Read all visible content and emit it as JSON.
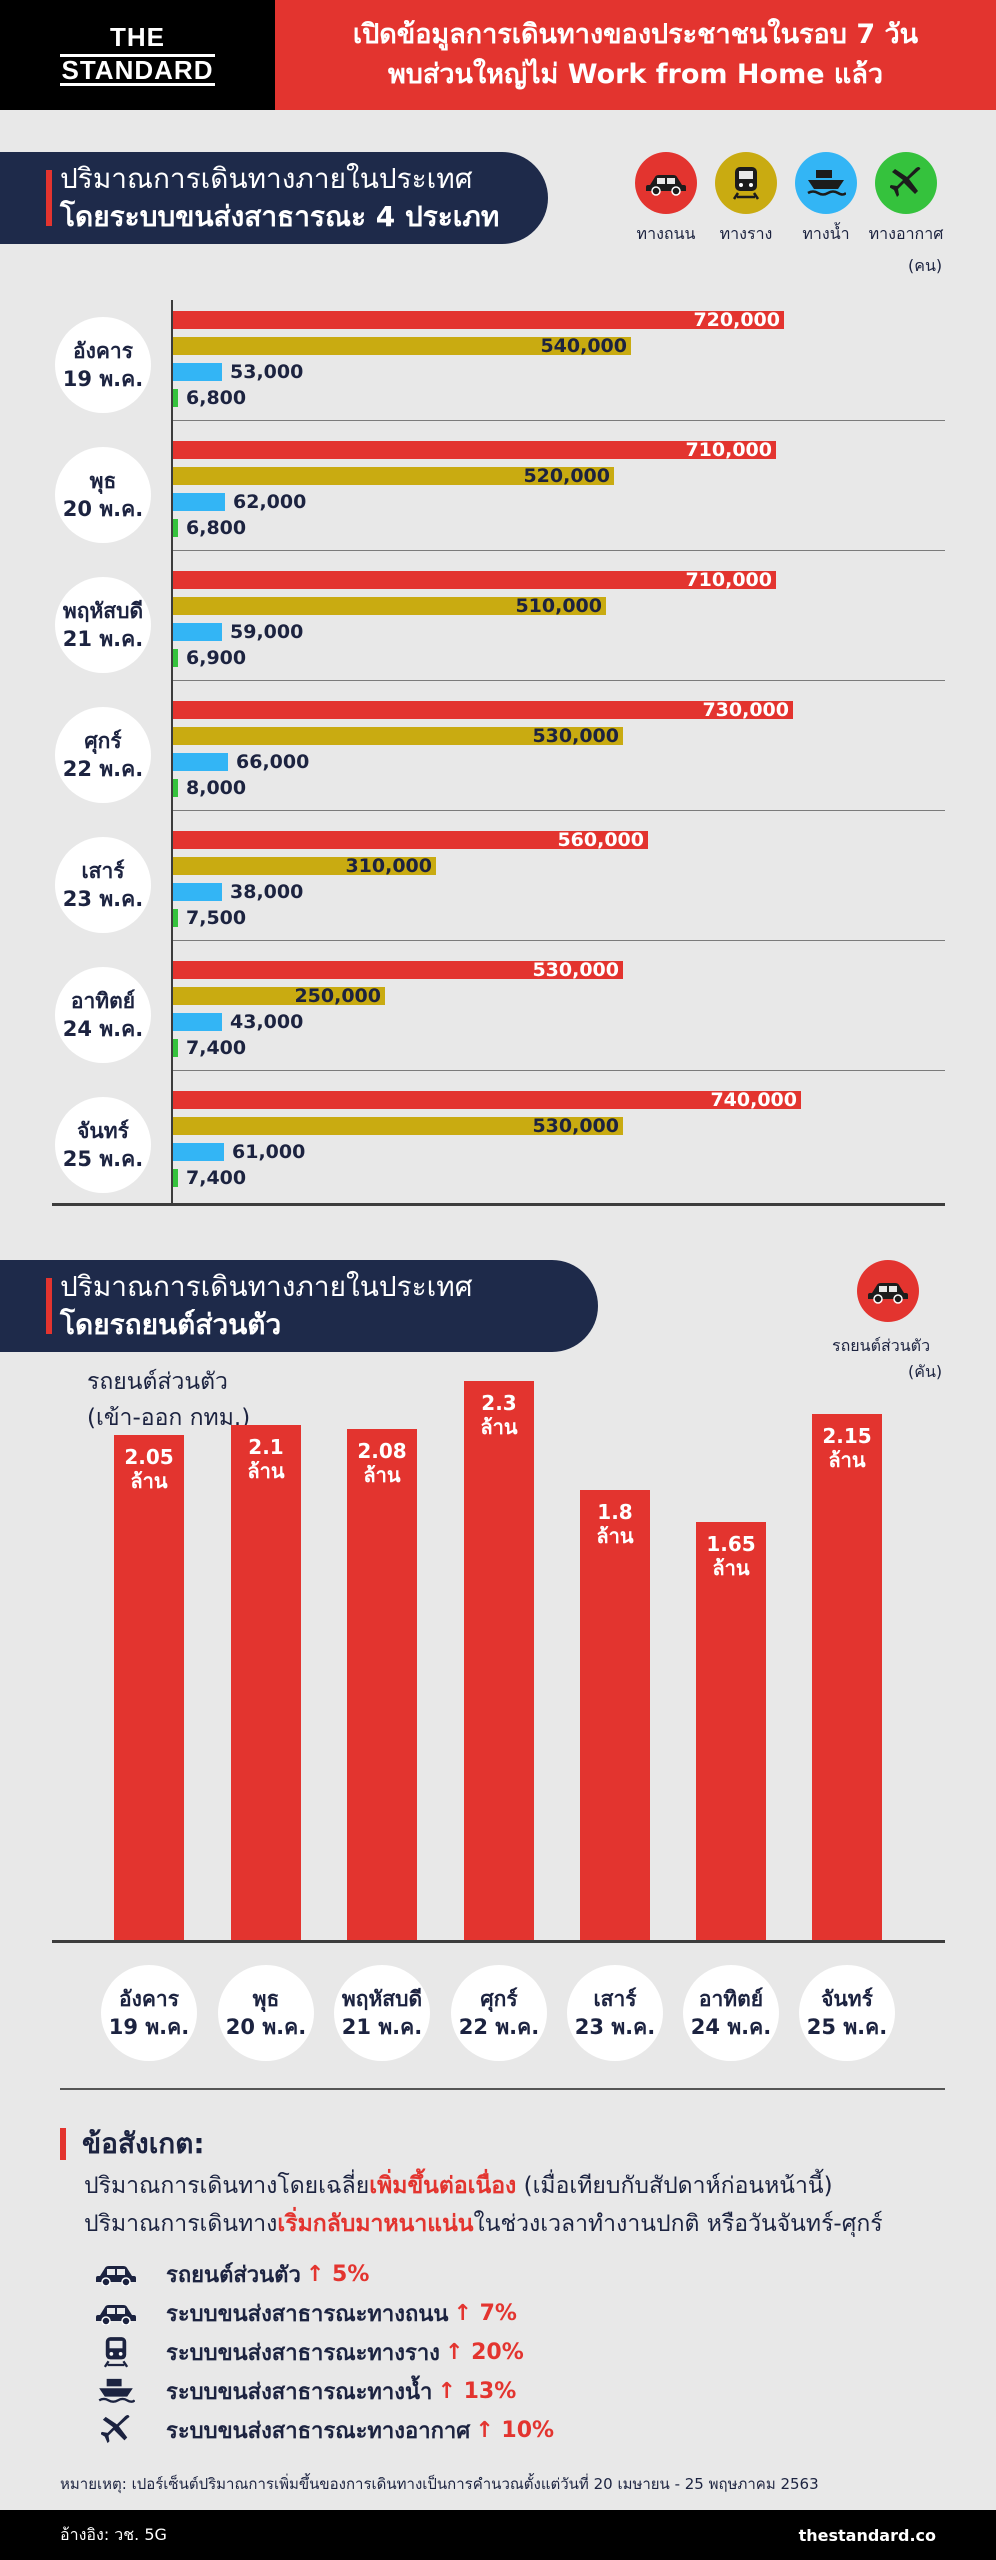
{
  "header": {
    "logo_line1": "THE",
    "logo_line2": "STANDARD",
    "headline_1": "เปิดข้อมูลการเดินทางของประชาชนในรอบ 7 วัน",
    "headline_2": "พบส่วนใหญ่ไม่ Work from Home แล้ว"
  },
  "section1": {
    "title_1": "ปริมาณการเดินทางภายในประเทศ",
    "title_2": "โดยระบบขนส่งสาธารณะ 4 ประเภท",
    "unit": "(คน)"
  },
  "legend": [
    {
      "label": "ทางถนน",
      "color": "#e3342f",
      "icon": "car-icon"
    },
    {
      "label": "ทางราง",
      "color": "#c9ab11",
      "icon": "train-icon"
    },
    {
      "label": "ทางน้ำ",
      "color": "#33b5f5",
      "icon": "boat-icon"
    },
    {
      "label": "ทางอากาศ",
      "color": "#35c23d",
      "icon": "plane-icon"
    }
  ],
  "section2": {
    "title_1": "ปริมาณการเดินทางภายในประเทศ",
    "title_2": "โดยรถยนต์ส่วนตัว",
    "legend_label": "รถยนต์ส่วนตัว",
    "unit": "(คัน)",
    "ylabel_1": "รถยนต์ส่วนตัว",
    "ylabel_2": "(เข้า-ออก กทม.)"
  },
  "chart_data": [
    {
      "type": "bar",
      "orientation": "horizontal",
      "title": "ปริมาณการเดินทางภายในประเทศ โดยระบบขนส่งสาธารณะ 4 ประเภท",
      "unit": "(คน)",
      "categories": [
        {
          "day": "อังคาร",
          "date": "19 พ.ค."
        },
        {
          "day": "พุธ",
          "date": "20 พ.ค."
        },
        {
          "day": "พฤหัสบดี",
          "date": "21 พ.ค."
        },
        {
          "day": "ศุกร์",
          "date": "22 พ.ค."
        },
        {
          "day": "เสาร์",
          "date": "23 พ.ค."
        },
        {
          "day": "อาทิตย์",
          "date": "24 พ.ค."
        },
        {
          "day": "จันทร์",
          "date": "25 พ.ค."
        }
      ],
      "series": [
        {
          "name": "ทางถนน",
          "color": "#e3342f",
          "values": [
            720000,
            710000,
            710000,
            730000,
            560000,
            530000,
            740000
          ],
          "labels": [
            "720,000",
            "710,000",
            "710,000",
            "730,000",
            "560,000",
            "530,000",
            "740,000"
          ]
        },
        {
          "name": "ทางราง",
          "color": "#c9ab11",
          "values": [
            540000,
            520000,
            510000,
            530000,
            310000,
            250000,
            530000
          ],
          "labels": [
            "540,000",
            "520,000",
            "510,000",
            "530,000",
            "310,000",
            "250,000",
            "530,000"
          ]
        },
        {
          "name": "ทางน้ำ",
          "color": "#33b5f5",
          "values": [
            53000,
            62000,
            59000,
            66000,
            38000,
            43000,
            61000
          ],
          "labels": [
            "53,000",
            "62,000",
            "59,000",
            "66,000",
            "38,000",
            "43,000",
            "61,000"
          ]
        },
        {
          "name": "ทางอากาศ",
          "color": "#35c23d",
          "values": [
            6800,
            6800,
            6900,
            8000,
            7500,
            7400,
            7400
          ],
          "labels": [
            "6,800",
            "6,800",
            "6,900",
            "8,000",
            "7,500",
            "7,400",
            "7,400"
          ]
        }
      ],
      "grid": false
    },
    {
      "type": "bar",
      "orientation": "vertical",
      "title": "ปริมาณการเดินทางภายในประเทศ โดยรถยนต์ส่วนตัว",
      "ylabel": "รถยนต์ส่วนตัว (เข้า-ออก กทม.)",
      "unit": "(คัน)",
      "categories": [
        {
          "day": "อังคาร",
          "date": "19 พ.ค."
        },
        {
          "day": "พุธ",
          "date": "20 พ.ค."
        },
        {
          "day": "พฤหัสบดี",
          "date": "21 พ.ค."
        },
        {
          "day": "ศุกร์",
          "date": "22 พ.ค."
        },
        {
          "day": "เสาร์",
          "date": "23 พ.ค."
        },
        {
          "day": "อาทิตย์",
          "date": "24 พ.ค."
        },
        {
          "day": "จันทร์",
          "date": "25 พ.ค."
        }
      ],
      "values": [
        2.05,
        2.1,
        2.08,
        2.3,
        1.8,
        1.65,
        2.15
      ],
      "value_labels": [
        "2.05",
        "2.1",
        "2.08",
        "2.3",
        "1.8",
        "1.65",
        "2.15"
      ],
      "value_suffix": "ล้าน",
      "color": "#e3342f",
      "grid": false
    }
  ],
  "notes": {
    "title": "ข้อสังเกต:",
    "line1_prefix": "ปริมาณการเดินทางโดยเฉลี่ย",
    "line1_highlight": "เพิ่มขึ้นต่อเนื่อง",
    "line1_suffix": " (เมื่อเทียบกับสัปดาห์ก่อนหน้านี้)",
    "line2_prefix": "ปริมาณการเดินทาง",
    "line2_highlight": "เริ่มกลับมาหนาแน่น",
    "line2_suffix": "ในช่วงเวลาทำงานปกติ หรือวันจันทร์-ศุกร์",
    "stats": [
      {
        "icon": "car-icon",
        "label": "รถยนต์ส่วนตัว",
        "change": "↑ 5%"
      },
      {
        "icon": "bus-icon",
        "label": "ระบบขนส่งสาธารณะทางถนน",
        "change": "↑ 7%"
      },
      {
        "icon": "train-icon",
        "label": "ระบบขนส่งสาธารณะทางราง",
        "change": "↑ 20%"
      },
      {
        "icon": "boat-icon",
        "label": "ระบบขนส่งสาธารณะทางน้ำ",
        "change": "↑ 13%"
      },
      {
        "icon": "plane-icon",
        "label": "ระบบขนส่งสาธารณะทางอากาศ",
        "change": "↑ 10%"
      }
    ],
    "footnote": "หมายเหตุ: เปอร์เซ็นต์ปริมาณการเพิ่มขึ้นของการเดินทางเป็นการคำนวณตั้งแต่วันที่ 20 เมษายน - 25 พฤษภาคม 2563"
  },
  "footer": {
    "source": "อ้างอิง: วช. 5G",
    "site": "thestandard.co"
  }
}
